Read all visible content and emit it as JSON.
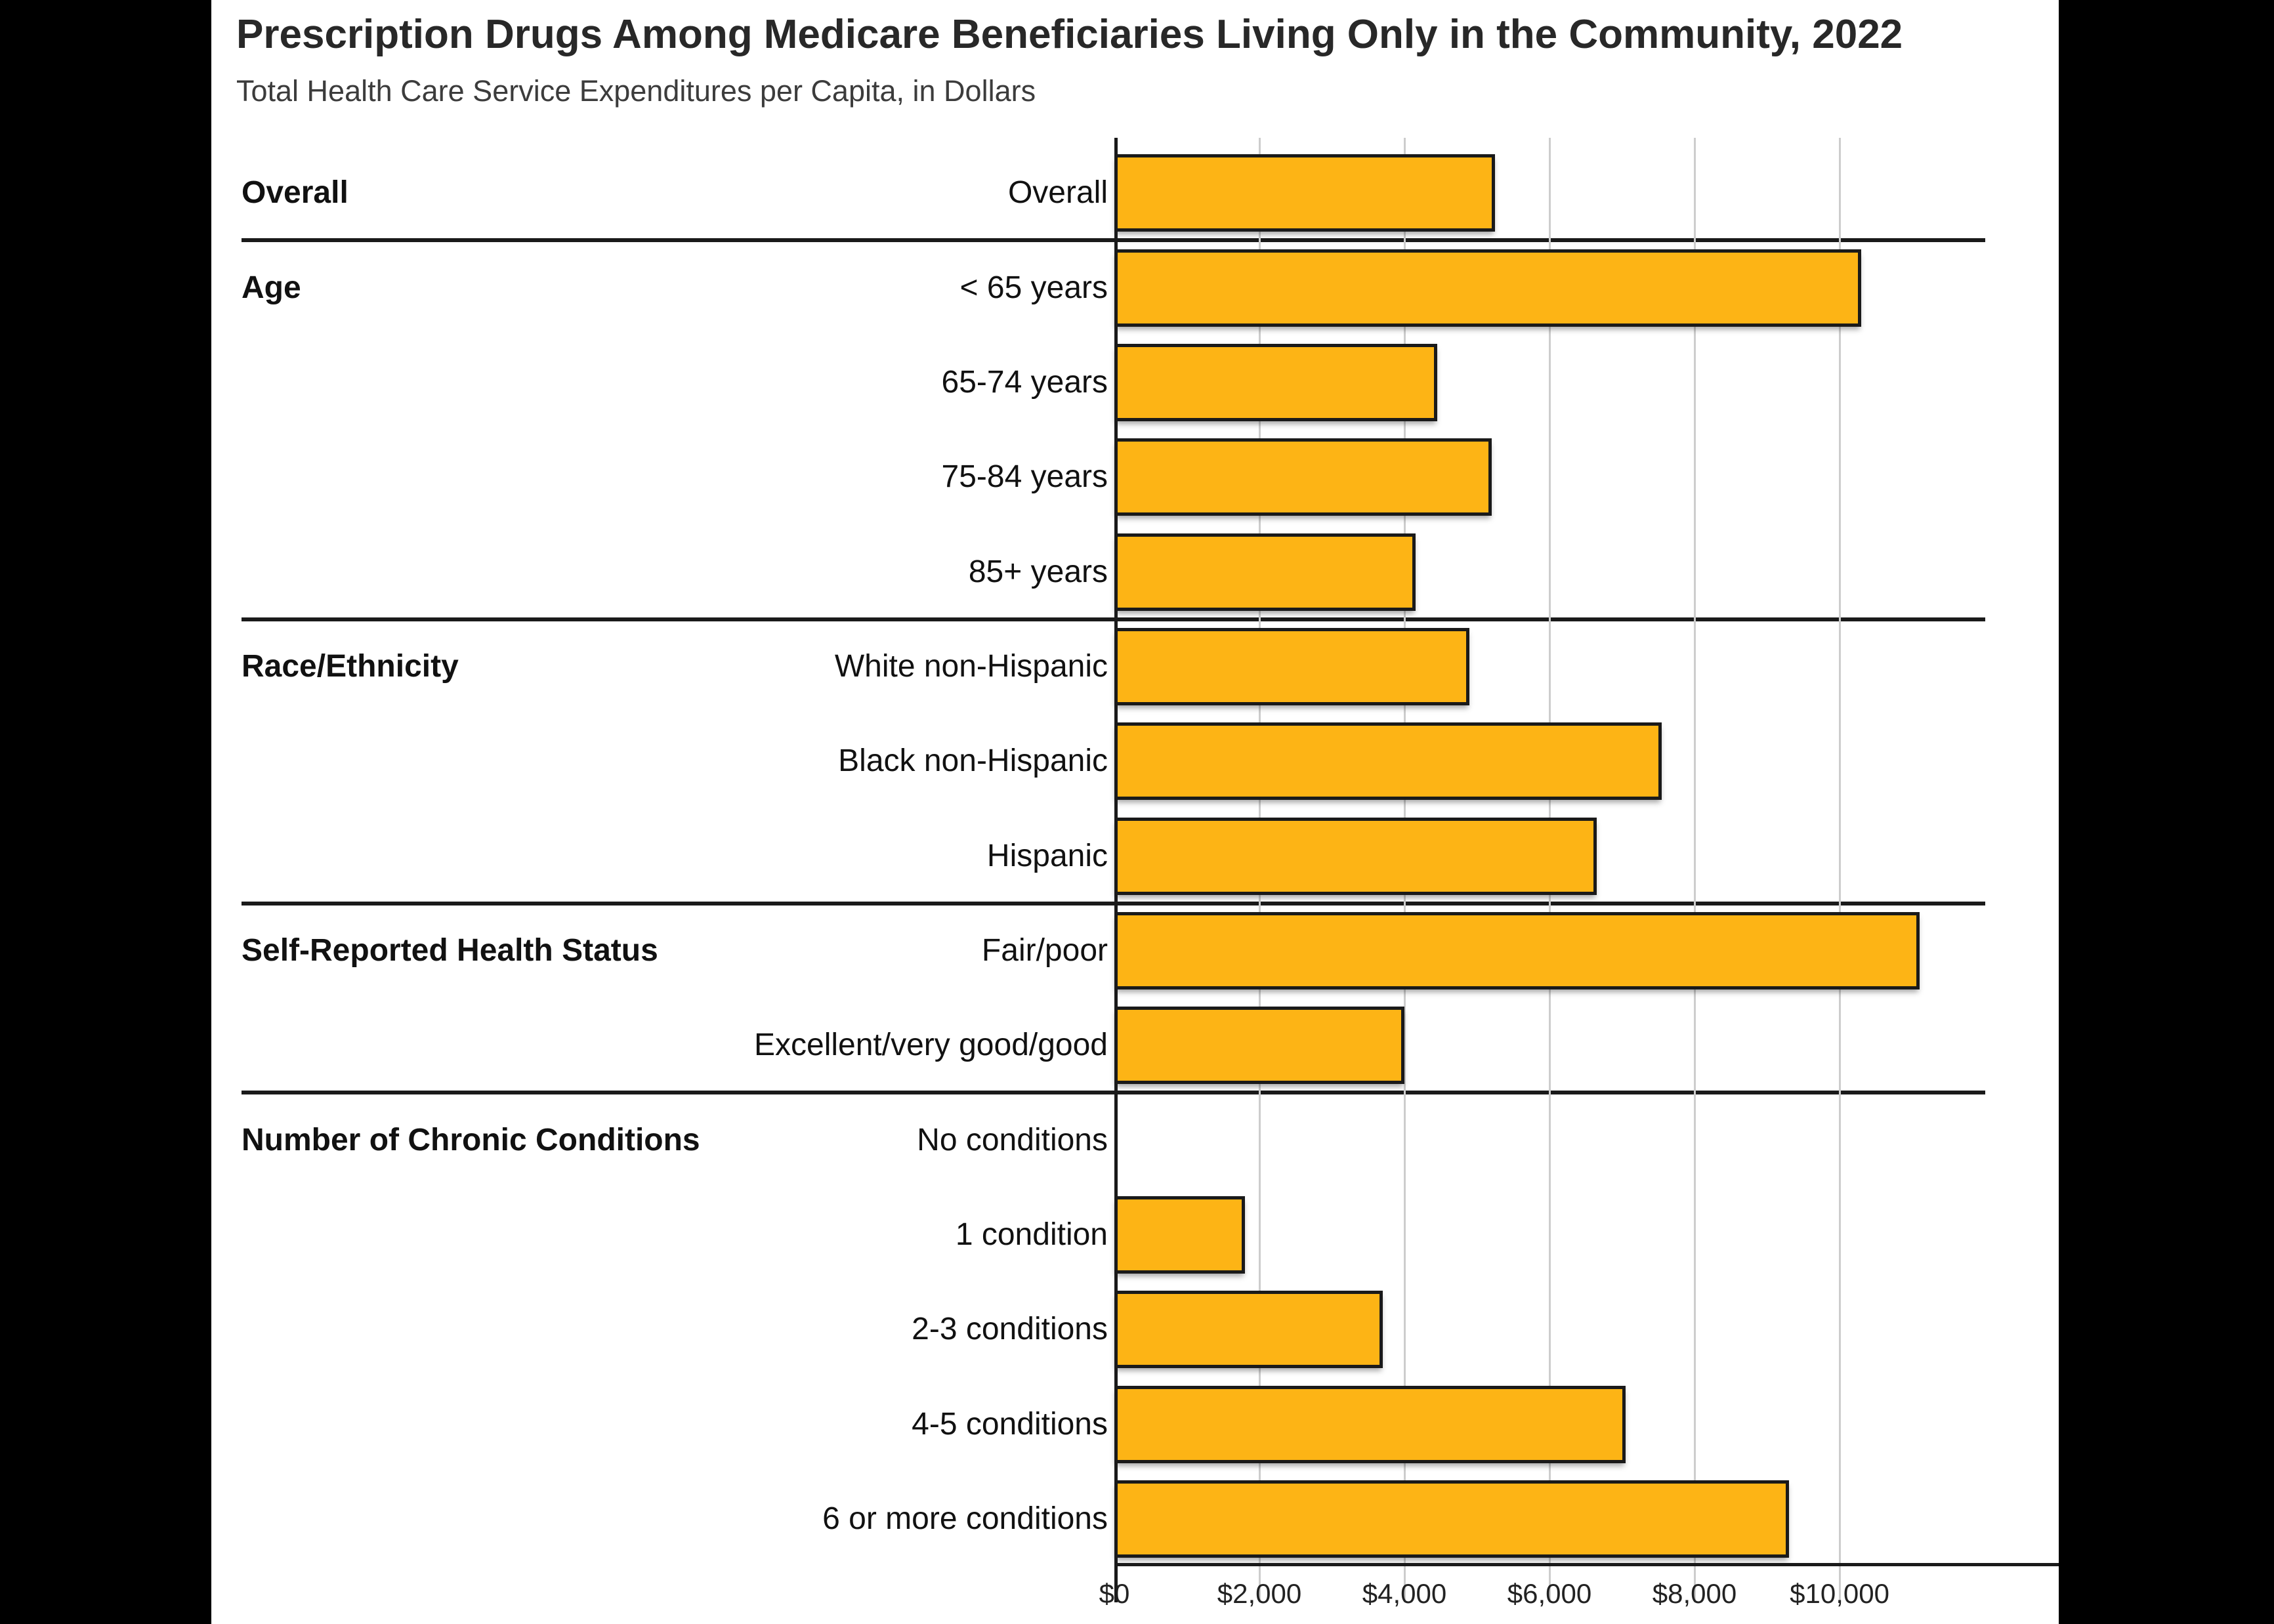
{
  "title": "Prescription Drugs Among Medicare Beneficiaries Living Only in the Community, 2022",
  "subtitle": "Total Health Care Service Expenditures per Capita, in Dollars",
  "colors": {
    "page_background": "#000000",
    "panel_background": "#ffffff",
    "bar_fill": "#FDB415",
    "bar_border": "#1a1a1a",
    "gridline": "#cdcdcd",
    "axis_line": "#1a1a1a",
    "title_text": "#282828",
    "subtitle_text": "#3c3c3c",
    "label_text": "#111111"
  },
  "x_axis": {
    "ticks": [
      {
        "label": "$0",
        "value": 0
      },
      {
        "label": "$2,000",
        "value": 2000
      },
      {
        "label": "$4,000",
        "value": 4000
      },
      {
        "label": "$6,000",
        "value": 6000
      },
      {
        "label": "$8,000",
        "value": 8000
      },
      {
        "label": "$10,000",
        "value": 10000
      }
    ],
    "max": 12280
  },
  "chart_data": {
    "type": "bar",
    "orientation": "horizontal",
    "title": "Prescription Drugs Among Medicare Beneficiaries Living Only in the Community, 2022",
    "xlabel": "Total Health Care Service Expenditures per Capita, in Dollars",
    "ylabel": "",
    "xlim": [
      0,
      12280
    ],
    "grid": true,
    "groups": [
      {
        "label": "Overall",
        "rows": [
          {
            "label": "Overall",
            "value": 5250
          }
        ]
      },
      {
        "label": "Age",
        "rows": [
          {
            "label": "< 65 years",
            "value": 10300
          },
          {
            "label": "65-74 years",
            "value": 4450
          },
          {
            "label": "75-84 years",
            "value": 5200
          },
          {
            "label": "85+ years",
            "value": 4150
          }
        ]
      },
      {
        "label": "Race/Ethnicity",
        "rows": [
          {
            "label": "White non-Hispanic",
            "value": 4900
          },
          {
            "label": "Black non-Hispanic",
            "value": 7550
          },
          {
            "label": "Hispanic",
            "value": 6650
          }
        ]
      },
      {
        "label": "Self-Reported Health Status",
        "rows": [
          {
            "label": "Fair/poor",
            "value": 11100
          },
          {
            "label": "Excellent/very good/good",
            "value": 4000
          }
        ]
      },
      {
        "label": "Number of Chronic Conditions",
        "rows": [
          {
            "label": "No conditions",
            "value": 0
          },
          {
            "label": "1 condition",
            "value": 1800
          },
          {
            "label": "2-3 conditions",
            "value": 3700
          },
          {
            "label": "4-5 conditions",
            "value": 7050
          },
          {
            "label": "6 or more conditions",
            "value": 9300
          }
        ]
      }
    ]
  }
}
